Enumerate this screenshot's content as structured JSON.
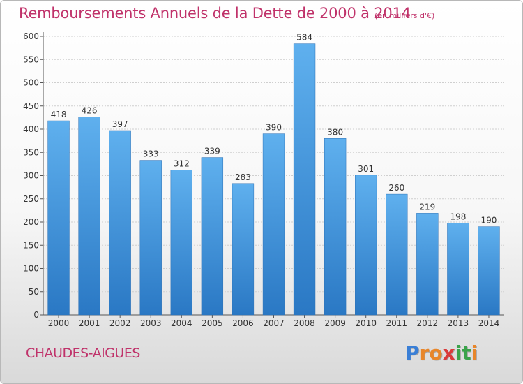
{
  "chart_data": {
    "type": "bar",
    "title": "Remboursements Annuels de la Dette de 2000 à 2014",
    "unit_label": "(en milliers d'€)",
    "categories": [
      "2000",
      "2001",
      "2002",
      "2003",
      "2004",
      "2005",
      "2006",
      "2007",
      "2008",
      "2009",
      "2010",
      "2011",
      "2012",
      "2013",
      "2014"
    ],
    "values": [
      418,
      426,
      397,
      333,
      312,
      339,
      283,
      390,
      584,
      380,
      301,
      260,
      219,
      198,
      190
    ],
    "yticks": [
      "0",
      "50",
      "100",
      "150",
      "200",
      "250",
      "300",
      "350",
      "400",
      "450",
      "500",
      "550",
      "600"
    ],
    "ylim": [
      0,
      600
    ],
    "grid": true,
    "bar_color": "#3a8fd8"
  },
  "footer": {
    "city": "CHAUDES-AIGUES",
    "logo": {
      "letters": [
        "P",
        "r",
        "o",
        "x",
        "i",
        "t",
        "i"
      ],
      "colors": [
        "#3a7fd6",
        "#e8862a",
        "#e8862a",
        "#d93a3a",
        "#3aa34a",
        "#3aa34a",
        "#e8862a"
      ]
    }
  }
}
